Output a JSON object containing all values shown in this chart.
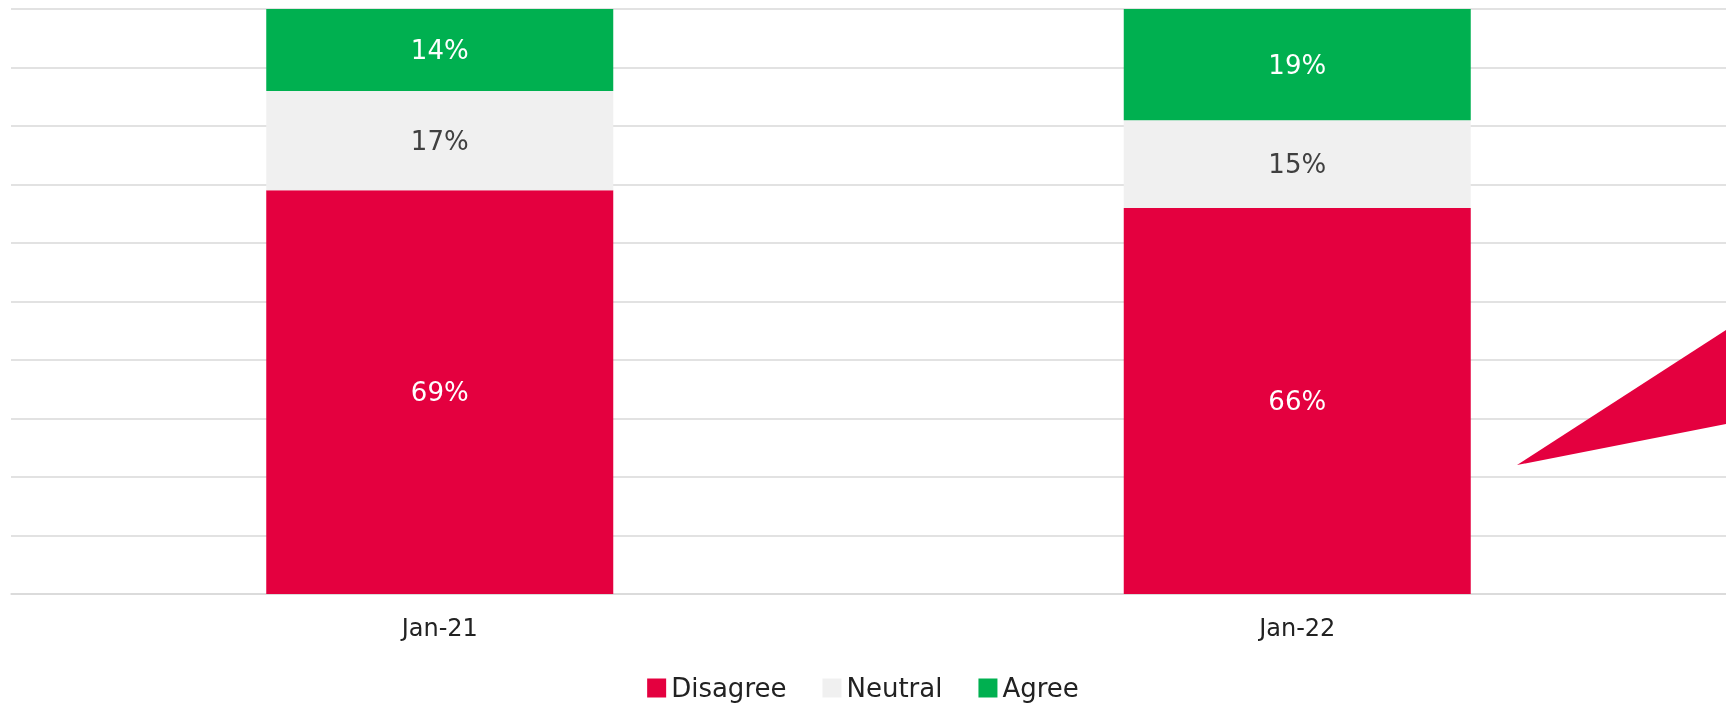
{
  "chart_data": {
    "type": "bar",
    "stacked": true,
    "categories": [
      "Jan-21",
      "Jan-22"
    ],
    "series": [
      {
        "name": "Disagree",
        "color": "#e4003f",
        "values": [
          69,
          66
        ],
        "value_labels": [
          "69%",
          "66%"
        ]
      },
      {
        "name": "Neutral",
        "color": "#f0f0f0",
        "values": [
          17,
          15
        ],
        "value_labels": [
          "17%",
          "15%"
        ]
      },
      {
        "name": "Agree",
        "color": "#00b050",
        "values": [
          14,
          19
        ],
        "value_labels": [
          "14%",
          "19%"
        ]
      }
    ],
    "ylim": [
      0,
      100
    ],
    "yticks": [
      {
        "value": 0,
        "label": null
      },
      {
        "value": 10,
        "label": null
      },
      {
        "value": 20,
        "label": null
      },
      {
        "value": 30,
        "label": null
      },
      {
        "value": 40,
        "label": null
      },
      {
        "value": 50,
        "label": null
      },
      {
        "value": 60,
        "label": null
      },
      {
        "value": 70,
        "label": null
      },
      {
        "value": 80,
        "label": null
      },
      {
        "value": 90,
        "label": null
      },
      {
        "value": 100,
        "label": null
      }
    ],
    "grid": "y",
    "legend": "bottom"
  }
}
